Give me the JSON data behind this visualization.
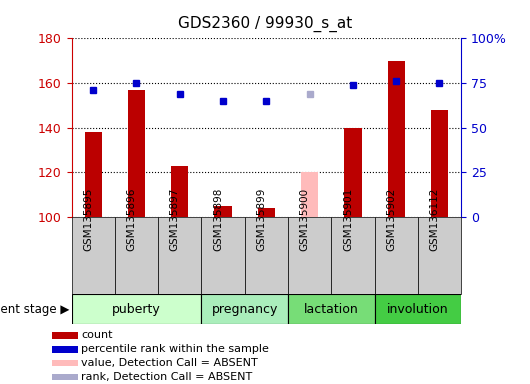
{
  "title": "GDS2360 / 99930_s_at",
  "samples": [
    "GSM135895",
    "GSM135896",
    "GSM135897",
    "GSM135898",
    "GSM135899",
    "GSM135900",
    "GSM135901",
    "GSM135902",
    "GSM136112"
  ],
  "bar_values": [
    138,
    157,
    123,
    105,
    104,
    null,
    140,
    170,
    148
  ],
  "bar_absent_values": [
    null,
    null,
    null,
    null,
    null,
    120,
    null,
    null,
    null
  ],
  "rank_values": [
    157,
    160,
    155,
    152,
    152,
    null,
    159,
    161,
    160
  ],
  "rank_absent_values": [
    null,
    null,
    null,
    null,
    null,
    155,
    null,
    null,
    null
  ],
  "bar_color": "#bb0000",
  "bar_absent_color": "#ffbbbb",
  "rank_color": "#0000cc",
  "rank_absent_color": "#aaaacc",
  "ylim_left": [
    100,
    180
  ],
  "ylim_right": [
    0,
    100
  ],
  "yticks_left": [
    100,
    120,
    140,
    160,
    180
  ],
  "yticks_right": [
    0,
    25,
    50,
    75,
    100
  ],
  "ytick_labels_right": [
    "0",
    "25",
    "50",
    "75",
    "100%"
  ],
  "stages": [
    {
      "label": "puberty",
      "start": 0,
      "end": 3,
      "color": "#ccffcc"
    },
    {
      "label": "pregnancy",
      "start": 3,
      "end": 5,
      "color": "#aaeebb"
    },
    {
      "label": "lactation",
      "start": 5,
      "end": 7,
      "color": "#77dd77"
    },
    {
      "label": "involution",
      "start": 7,
      "end": 9,
      "color": "#44cc44"
    }
  ],
  "legend_items": [
    {
      "label": "count",
      "color": "#bb0000"
    },
    {
      "label": "percentile rank within the sample",
      "color": "#0000cc"
    },
    {
      "label": "value, Detection Call = ABSENT",
      "color": "#ffbbbb"
    },
    {
      "label": "rank, Detection Call = ABSENT",
      "color": "#aaaacc"
    }
  ],
  "dev_stage_label": "development stage",
  "left_axis_color": "#cc0000",
  "right_axis_color": "#0000cc",
  "sample_box_color": "#cccccc",
  "bar_width": 0.4
}
